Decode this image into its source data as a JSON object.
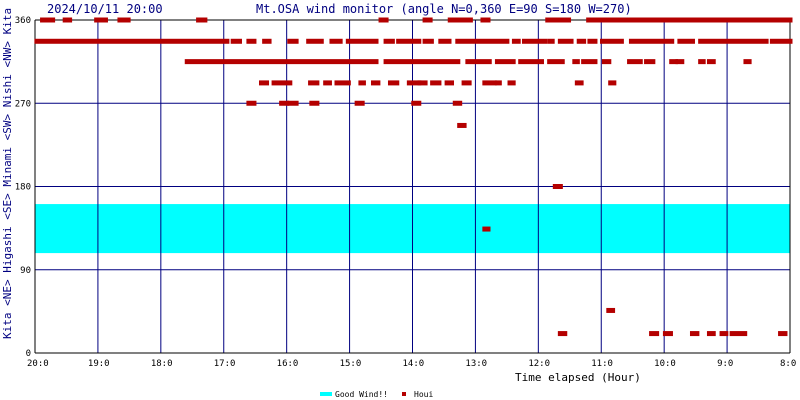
{
  "header": {
    "datetime": "2024/10/11 20:00",
    "title": "Mt.OSA wind monitor (angle N=0,360 E=90 S=180 W=270)"
  },
  "y_axis_direction_labels": "Kita <NE> Higashi <SE> Minami <SW> Nishi <NW> Kita",
  "legend": {
    "band_label": "Good Wind!!",
    "points_label": "Houi"
  },
  "colors": {
    "band": "#00ffff",
    "points": "#b40000",
    "grid": "#000080",
    "axis": "#000000"
  },
  "chart_data": {
    "type": "scatter",
    "title": "Mt.OSA wind monitor (angle N=0,360 E=90 S=180 W=270)",
    "xlabel": "Time elapsed (Hour)",
    "ylabel": "Kita <NE> Higashi <SE> Minami <SW> Nishi <NW> Kita",
    "x_ticks": [
      "20:0",
      "19:0",
      "18:0",
      "17:0",
      "16:0",
      "15:0",
      "14:0",
      "13:0",
      "12:0",
      "11:0",
      "10:0",
      "9:0",
      "8:0"
    ],
    "xlim": [
      0,
      12
    ],
    "ylim": [
      0,
      360
    ],
    "y_ticks": [
      0,
      90,
      180,
      270,
      360
    ],
    "good_wind_band": {
      "from": 108,
      "to": 161,
      "label": "Good Wind!!"
    },
    "grid": true,
    "legend_position": "bottom-center",
    "series": [
      {
        "name": "Houi",
        "runs": [
          {
            "y": 360,
            "segments": [
              [
                0.12,
                0.28
              ],
              [
                0.48,
                0.55
              ],
              [
                0.98,
                1.12
              ],
              [
                1.35,
                1.48
              ],
              [
                2.6,
                2.7
              ],
              [
                5.5,
                5.58
              ],
              [
                6.2,
                6.28
              ],
              [
                6.6,
                6.92
              ],
              [
                7.12,
                7.2
              ],
              [
                8.15,
                8.48
              ],
              [
                8.8,
                12.0
              ]
            ]
          },
          {
            "y": 337,
            "segments": [
              [
                0.03,
                3.05
              ],
              [
                3.15,
                3.25
              ],
              [
                3.4,
                3.48
              ],
              [
                3.65,
                3.72
              ],
              [
                4.05,
                4.15
              ],
              [
                4.35,
                4.55
              ],
              [
                4.72,
                4.85
              ],
              [
                4.98,
                5.42
              ],
              [
                5.58,
                5.68
              ],
              [
                5.78,
                6.1
              ],
              [
                6.2,
                6.3
              ],
              [
                6.45,
                6.58
              ],
              [
                6.72,
                7.5
              ],
              [
                7.62,
                7.68
              ],
              [
                7.78,
                8.1
              ],
              [
                8.18,
                8.22
              ],
              [
                8.35,
                8.52
              ],
              [
                8.65,
                8.72
              ],
              [
                8.82,
                8.9
              ],
              [
                9.02,
                9.32
              ],
              [
                9.48,
                10.12
              ],
              [
                10.25,
                10.45
              ],
              [
                10.58,
                11.62
              ],
              [
                11.72,
                12.0
              ]
            ]
          },
          {
            "y": 315,
            "segments": [
              [
                2.42,
                5.42
              ],
              [
                5.58,
                6.72
              ],
              [
                6.88,
                7.22
              ],
              [
                7.35,
                7.6
              ],
              [
                7.72,
                8.05
              ],
              [
                8.18,
                8.38
              ],
              [
                8.58,
                8.62
              ],
              [
                8.72,
                8.9
              ],
              [
                9.05,
                9.12
              ],
              [
                9.45,
                9.62
              ],
              [
                9.72,
                9.82
              ],
              [
                10.12,
                10.18
              ],
              [
                10.22,
                10.28
              ],
              [
                10.58,
                10.62
              ],
              [
                10.72,
                10.78
              ],
              [
                11.3,
                11.35
              ]
            ]
          },
          {
            "y": 292,
            "segments": [
              [
                3.6,
                3.68
              ],
              [
                3.8,
                4.05
              ],
              [
                4.38,
                4.48
              ],
              [
                4.62,
                4.68
              ],
              [
                4.8,
                4.98
              ],
              [
                5.18,
                5.22
              ],
              [
                5.38,
                5.45
              ],
              [
                5.65,
                5.75
              ],
              [
                5.95,
                6.1
              ],
              [
                6.12,
                6.2
              ],
              [
                6.32,
                6.42
              ],
              [
                6.55,
                6.62
              ],
              [
                6.82,
                6.9
              ],
              [
                7.15,
                7.3
              ],
              [
                7.35,
                7.38
              ],
              [
                7.55,
                7.6
              ],
              [
                8.62,
                8.68
              ],
              [
                9.15,
                9.2
              ]
            ]
          },
          {
            "y": 270,
            "segments": [
              [
                3.4,
                3.48
              ],
              [
                3.92,
                4.0
              ],
              [
                4.05,
                4.15
              ],
              [
                4.4,
                4.48
              ],
              [
                5.12,
                5.2
              ],
              [
                6.02,
                6.1
              ],
              [
                6.68,
                6.75
              ]
            ]
          },
          {
            "y": 246,
            "segments": [
              [
                6.75,
                6.82
              ]
            ]
          },
          {
            "y": 180,
            "segments": [
              [
                8.27,
                8.35
              ]
            ]
          },
          {
            "y": 134,
            "segments": [
              [
                7.15,
                7.2
              ]
            ]
          },
          {
            "y": 46,
            "segments": [
              [
                9.12,
                9.18
              ]
            ]
          },
          {
            "y": 21,
            "segments": [
              [
                8.35,
                8.42
              ],
              [
                9.8,
                9.88
              ],
              [
                10.02,
                10.1
              ],
              [
                10.45,
                10.52
              ],
              [
                10.72,
                10.78
              ],
              [
                10.92,
                10.98
              ],
              [
                11.08,
                11.28
              ],
              [
                11.85,
                11.92
              ]
            ]
          }
        ]
      }
    ]
  }
}
